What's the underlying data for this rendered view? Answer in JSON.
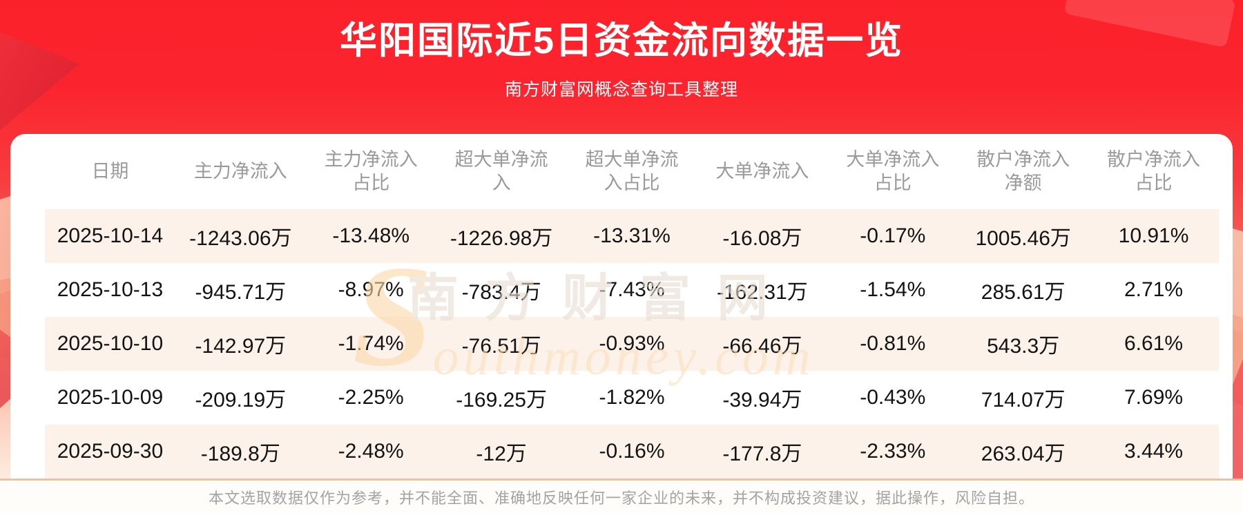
{
  "banner": {
    "title": "华阳国际近5日资金流向数据一览",
    "subtitle": "南方财富网概念查询工具整理"
  },
  "table": {
    "headers": [
      {
        "lines": [
          "日期"
        ]
      },
      {
        "lines": [
          "主力净流入"
        ]
      },
      {
        "lines": [
          "主力净流入",
          "占比"
        ]
      },
      {
        "lines": [
          "超大单净流",
          "入"
        ]
      },
      {
        "lines": [
          "超大单净流",
          "入占比"
        ]
      },
      {
        "lines": [
          "大单净流入"
        ]
      },
      {
        "lines": [
          "大单净流入",
          "占比"
        ]
      },
      {
        "lines": [
          "散户净流入",
          "净额"
        ]
      },
      {
        "lines": [
          "散户净流入",
          "占比"
        ]
      }
    ]
  },
  "chart_data": {
    "type": "table",
    "title": "华阳国际近5日资金流向数据一览",
    "columns": [
      "日期",
      "主力净流入",
      "主力净流入占比",
      "超大单净流入",
      "超大单净流入占比",
      "大单净流入",
      "大单净流入占比",
      "散户净流入净额",
      "散户净流入占比"
    ],
    "rows": [
      [
        "2025-10-14",
        "-1243.06万",
        "-13.48%",
        "-1226.98万",
        "-13.31%",
        "-16.08万",
        "-0.17%",
        "1005.46万",
        "10.91%"
      ],
      [
        "2025-10-13",
        "-945.71万",
        "-8.97%",
        "-783.4万",
        "-7.43%",
        "-162.31万",
        "-1.54%",
        "285.61万",
        "2.71%"
      ],
      [
        "2025-10-10",
        "-142.97万",
        "-1.74%",
        "-76.51万",
        "-0.93%",
        "-66.46万",
        "-0.81%",
        "543.3万",
        "6.61%"
      ],
      [
        "2025-10-09",
        "-209.19万",
        "-2.25%",
        "-169.25万",
        "-1.82%",
        "-39.94万",
        "-0.43%",
        "714.07万",
        "7.69%"
      ],
      [
        "2025-09-30",
        "-189.8万",
        "-2.48%",
        "-12万",
        "-0.16%",
        "-177.8万",
        "-2.33%",
        "263.04万",
        "3.44%"
      ]
    ]
  },
  "watermark": {
    "cn": "南方财富网",
    "en_initial": "S",
    "en_rest": "outhmoney.com"
  },
  "footer": {
    "disclaimer": "本文选取数据仅作为参考，并不能全面、准确地反映任何一家企业的未来，并不构成投资建议，据此操作，风险自担。"
  },
  "colors": {
    "banner_red": "#fb212b",
    "row_stripe": "#fdf2ea",
    "divider_orange": "#f2c28f",
    "header_gray": "#9a9a9a",
    "cell_black": "#131313",
    "footer_gray": "#a3a3a3"
  }
}
